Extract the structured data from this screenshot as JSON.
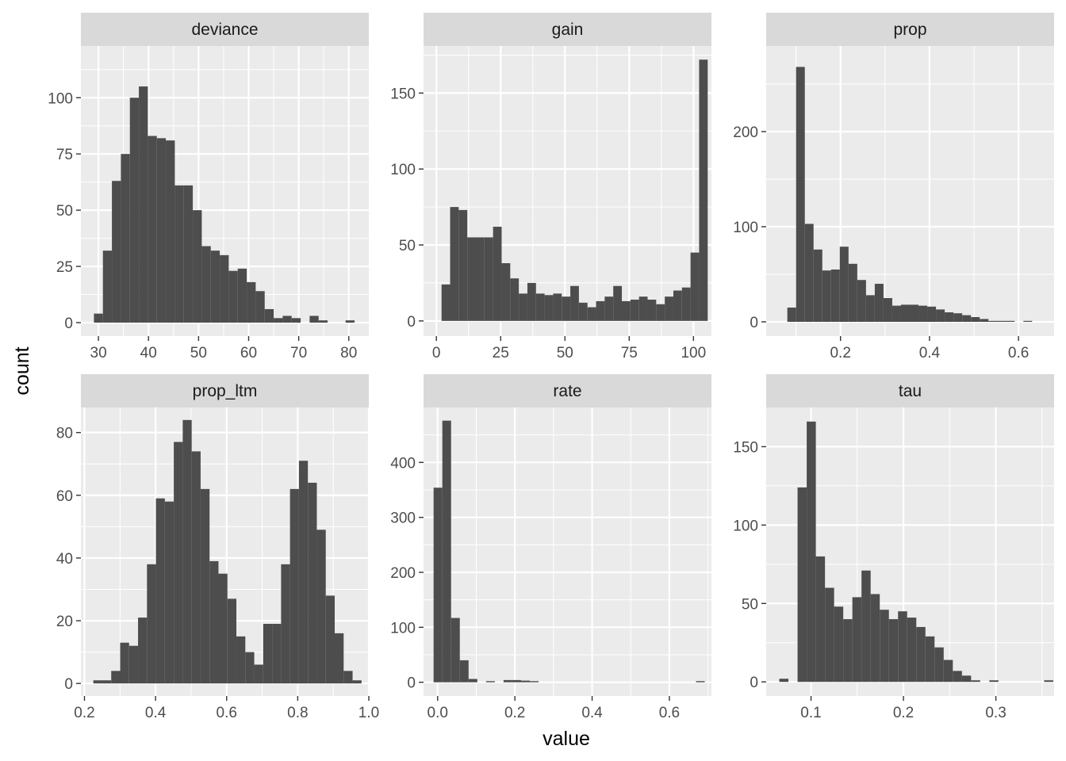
{
  "figure": {
    "xlabel": "value",
    "ylabel": "count"
  },
  "colors": {
    "panel_bg": "#ebebeb",
    "strip_bg": "#d9d9d9",
    "grid": "#ffffff",
    "bar": "#4d4d4d",
    "tick": "#333333"
  },
  "chart_data": [
    {
      "type": "bar",
      "title": "deviance",
      "xlim": [
        26.5,
        84
      ],
      "ylim": [
        -6,
        123
      ],
      "xticks": [
        30,
        40,
        50,
        60,
        70,
        80
      ],
      "xtick_labels": [
        "30",
        "40",
        "50",
        "60",
        "70",
        "80"
      ],
      "yticks": [
        0,
        25,
        50,
        75,
        100
      ],
      "ytick_labels": [
        "0",
        "25",
        "50",
        "75",
        "100"
      ],
      "bin_start": 29.1,
      "bin_width": 1.795,
      "values": [
        4,
        32,
        63,
        75,
        100,
        105,
        83,
        82,
        81,
        61,
        61,
        50,
        34,
        32,
        30,
        23,
        24,
        18,
        14,
        6,
        2,
        3,
        2,
        0,
        3,
        1,
        0,
        0,
        1
      ]
    },
    {
      "type": "bar",
      "title": "gain",
      "xlim": [
        -5,
        107
      ],
      "ylim": [
        -10,
        181
      ],
      "xticks": [
        0,
        25,
        50,
        75,
        100
      ],
      "xtick_labels": [
        "0",
        "25",
        "50",
        "75",
        "100"
      ],
      "yticks": [
        0,
        50,
        100,
        150
      ],
      "ytick_labels": [
        "0",
        "50",
        "100",
        "150"
      ],
      "bin_start": 2.0,
      "bin_width": 3.34,
      "values": [
        24,
        75,
        73,
        55,
        55,
        55,
        62,
        38,
        28,
        18,
        25,
        18,
        17,
        18,
        16,
        23,
        12,
        9,
        13,
        16,
        23,
        13,
        14,
        16,
        14,
        11,
        16,
        20,
        22,
        45,
        172
      ]
    },
    {
      "type": "bar",
      "title": "prop",
      "xlim": [
        0.033,
        0.68
      ],
      "ylim": [
        -15,
        290
      ],
      "xticks": [
        0.2,
        0.4,
        0.6
      ],
      "xtick_labels": [
        "0.2",
        "0.4",
        "0.6"
      ],
      "yticks": [
        0,
        100,
        200
      ],
      "ytick_labels": [
        "0",
        "100",
        "200"
      ],
      "bin_start": 0.0805,
      "bin_width": 0.01965,
      "values": [
        15,
        268,
        103,
        76,
        54,
        55,
        79,
        61,
        44,
        28,
        40,
        25,
        17,
        18,
        18,
        17,
        16,
        13,
        10,
        9,
        7,
        5,
        3,
        1,
        1,
        1,
        0,
        1
      ]
    },
    {
      "type": "bar",
      "title": "prop_ltm",
      "xlim": [
        0.19,
        1.0
      ],
      "ylim": [
        -4,
        88
      ],
      "xticks": [
        0.2,
        0.4,
        0.6,
        0.8,
        1.0
      ],
      "xtick_labels": [
        "0.2",
        "0.4",
        "0.6",
        "0.8",
        "1.0"
      ],
      "yticks": [
        0,
        20,
        40,
        60,
        80
      ],
      "ytick_labels": [
        "0",
        "20",
        "40",
        "60",
        "80"
      ],
      "bin_start": 0.225,
      "bin_width": 0.02515,
      "values": [
        1,
        1,
        4,
        13,
        12,
        21,
        38,
        59,
        58,
        77,
        84,
        74,
        62,
        39,
        35,
        27,
        15,
        10,
        6,
        19,
        19,
        38,
        62,
        71,
        64,
        49,
        28,
        16,
        4,
        1
      ]
    },
    {
      "type": "bar",
      "title": "rate",
      "xlim": [
        -0.0365,
        0.709
      ],
      "ylim": [
        -25,
        500
      ],
      "xticks": [
        0.0,
        0.2,
        0.4,
        0.6
      ],
      "xtick_labels": [
        "0.0",
        "0.2",
        "0.4",
        "0.6"
      ],
      "yticks": [
        0,
        100,
        200,
        300,
        400
      ],
      "ytick_labels": [
        "0",
        "100",
        "200",
        "300",
        "400"
      ],
      "bin_start": -0.0105,
      "bin_width": 0.02265,
      "values": [
        354,
        476,
        117,
        40,
        6,
        0,
        2,
        0,
        4,
        4,
        3,
        2,
        0,
        0,
        0,
        0,
        0,
        0,
        0,
        0,
        0,
        0,
        0,
        0,
        0,
        0,
        0,
        0,
        0,
        0,
        2
      ]
    },
    {
      "type": "bar",
      "title": "tau",
      "xlim": [
        0.0515,
        0.363
      ],
      "ylim": [
        -9,
        175
      ],
      "xticks": [
        0.1,
        0.2,
        0.3
      ],
      "xtick_labels": [
        "0.1",
        "0.2",
        "0.3"
      ],
      "yticks": [
        0,
        50,
        100,
        150
      ],
      "ytick_labels": [
        "0",
        "50",
        "100",
        "150"
      ],
      "bin_start": 0.0657,
      "bin_width": 0.00988,
      "values": [
        2,
        0,
        124,
        166,
        80,
        60,
        48,
        40,
        54,
        71,
        56,
        46,
        40,
        45,
        41,
        35,
        29,
        22,
        14,
        7,
        4,
        1,
        0,
        1,
        0,
        0,
        0,
        0,
        0,
        1
      ]
    }
  ]
}
